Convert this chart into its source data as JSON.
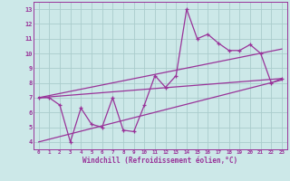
{
  "xlabel": "Windchill (Refroidissement éolien,°C)",
  "bg_color": "#cce8e8",
  "grid_color": "#aacccc",
  "line_color": "#993399",
  "xlim": [
    -0.5,
    23.5
  ],
  "ylim": [
    3.5,
    13.5
  ],
  "xticks": [
    0,
    1,
    2,
    3,
    4,
    5,
    6,
    7,
    8,
    9,
    10,
    11,
    12,
    13,
    14,
    15,
    16,
    17,
    18,
    19,
    20,
    21,
    22,
    23
  ],
  "yticks": [
    4,
    5,
    6,
    7,
    8,
    9,
    10,
    11,
    12,
    13
  ],
  "data_x": [
    0,
    1,
    2,
    3,
    4,
    5,
    6,
    7,
    8,
    9,
    10,
    11,
    12,
    13,
    14,
    15,
    16,
    17,
    18,
    19,
    20,
    21,
    22,
    23
  ],
  "data_y": [
    7.0,
    7.0,
    6.5,
    4.0,
    6.3,
    5.2,
    5.0,
    7.0,
    4.8,
    4.7,
    6.5,
    8.5,
    7.7,
    8.5,
    13.0,
    11.0,
    11.3,
    10.7,
    10.2,
    10.2,
    10.6,
    10.0,
    8.0,
    8.3
  ],
  "trend1_x": [
    0,
    23
  ],
  "trend1_y": [
    7.0,
    8.3
  ],
  "trend2_x": [
    0,
    23
  ],
  "trend2_y": [
    7.0,
    10.3
  ],
  "trend3_x": [
    0,
    23
  ],
  "trend3_y": [
    4.0,
    8.2
  ]
}
